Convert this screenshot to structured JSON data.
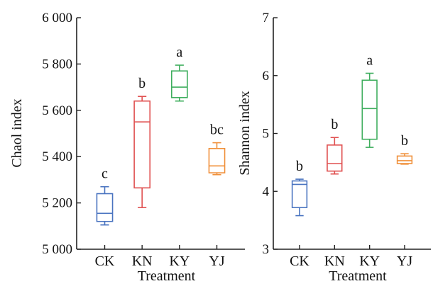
{
  "chart_data": [
    {
      "type": "box",
      "xlabel": "Treatment",
      "ylabel": "Chaol index",
      "ylim": [
        5000,
        6000
      ],
      "yticks": [
        5000,
        5200,
        5400,
        5600,
        5800,
        6000
      ],
      "ytick_labels": [
        "5 000",
        "5 200",
        "5 400",
        "5 600",
        "5 800",
        "6 000"
      ],
      "categories": [
        "CK",
        "KN",
        "KY",
        "YJ"
      ],
      "boxes": [
        {
          "category": "CK",
          "min": 5105,
          "q1": 5120,
          "median": 5155,
          "q3": 5240,
          "max": 5270,
          "letter": "c",
          "color": "#4a74c0"
        },
        {
          "category": "KN",
          "min": 5180,
          "q1": 5265,
          "median": 5550,
          "q3": 5640,
          "max": 5660,
          "letter": "b",
          "color": "#e05050"
        },
        {
          "category": "KY",
          "min": 5640,
          "q1": 5655,
          "median": 5700,
          "q3": 5770,
          "max": 5795,
          "letter": "a",
          "color": "#3fae5e"
        },
        {
          "category": "YJ",
          "min": 5322,
          "q1": 5330,
          "median": 5360,
          "q3": 5435,
          "max": 5460,
          "letter": "bc",
          "color": "#f0903a"
        }
      ]
    },
    {
      "type": "box",
      "xlabel": "Treatment",
      "ylabel": "Shannon index",
      "ylim": [
        3,
        7
      ],
      "yticks": [
        3,
        4,
        5,
        6,
        7
      ],
      "ytick_labels": [
        "3",
        "4",
        "5",
        "6",
        "7"
      ],
      "categories": [
        "CK",
        "KN",
        "KY",
        "YJ"
      ],
      "boxes": [
        {
          "category": "CK",
          "min": 3.58,
          "q1": 3.72,
          "median": 4.12,
          "q3": 4.18,
          "max": 4.21,
          "letter": "b",
          "color": "#4a74c0"
        },
        {
          "category": "KN",
          "min": 4.3,
          "q1": 4.35,
          "median": 4.48,
          "q3": 4.8,
          "max": 4.93,
          "letter": "b",
          "color": "#e05050"
        },
        {
          "category": "KY",
          "min": 4.76,
          "q1": 4.9,
          "median": 5.43,
          "q3": 5.92,
          "max": 6.04,
          "letter": "a",
          "color": "#3fae5e"
        },
        {
          "category": "YJ",
          "min": 4.47,
          "q1": 4.48,
          "median": 4.53,
          "q3": 4.61,
          "max": 4.65,
          "letter": "b",
          "color": "#f0903a"
        }
      ]
    }
  ]
}
